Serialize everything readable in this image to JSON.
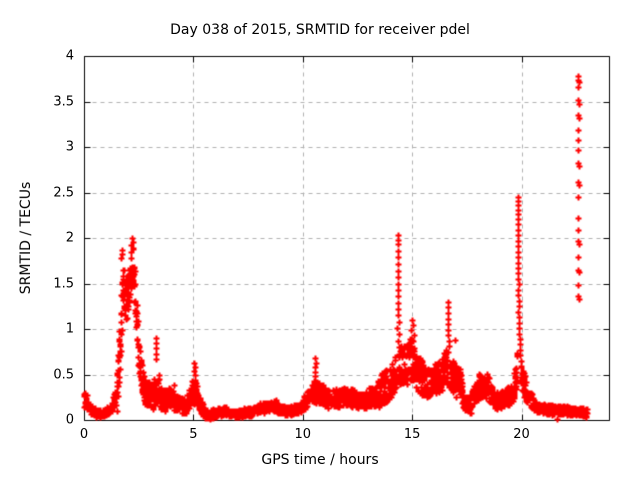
{
  "chart_data": {
    "type": "scatter",
    "title": "Day 038 of 2015, SRMTID for receiver pdel",
    "xlabel": "GPS time / hours",
    "ylabel": "SRMTID / TECUs",
    "xlim": [
      0,
      24
    ],
    "ylim": [
      0,
      4
    ],
    "xticks": [
      0,
      5,
      10,
      15,
      20
    ],
    "yticks": [
      0,
      0.5,
      1,
      1.5,
      2,
      2.5,
      3,
      3.5,
      4
    ],
    "grid": true,
    "grid_style": "dashed",
    "grid_color": "#b0b0b0",
    "axis_color": "#000000",
    "legend": "none",
    "marker": {
      "shape": "plus",
      "color": "#ff0000",
      "size": 7
    },
    "seed": 38,
    "series_name": "SRMTID",
    "series_segments": [
      [
        0.0,
        0.12,
        0.008,
        0.22,
        0.2,
        0.09
      ],
      [
        0.12,
        0.5,
        0.01,
        0.16,
        0.08,
        0.05
      ],
      [
        0.5,
        1.0,
        0.01,
        0.07,
        0.08,
        0.04
      ],
      [
        1.0,
        1.3,
        0.01,
        0.09,
        0.13,
        0.05
      ],
      [
        1.3,
        1.5,
        0.01,
        0.15,
        0.3,
        0.1
      ],
      [
        1.5,
        1.68,
        0.008,
        0.3,
        0.95,
        0.25
      ],
      [
        1.68,
        1.8,
        0.008,
        1.1,
        1.55,
        0.28
      ],
      [
        1.8,
        2.0,
        0.008,
        1.45,
        1.3,
        0.25
      ],
      [
        2.0,
        2.15,
        0.008,
        1.35,
        1.7,
        0.25
      ],
      [
        2.15,
        2.3,
        0.008,
        1.75,
        1.65,
        0.22
      ],
      [
        2.3,
        2.5,
        0.008,
        1.5,
        0.75,
        0.25
      ],
      [
        2.5,
        2.75,
        0.008,
        0.65,
        0.38,
        0.18
      ],
      [
        2.75,
        3.15,
        0.01,
        0.32,
        0.26,
        0.14
      ],
      [
        3.15,
        3.45,
        0.008,
        0.3,
        0.35,
        0.15
      ],
      [
        3.45,
        3.75,
        0.01,
        0.25,
        0.2,
        0.12
      ],
      [
        3.75,
        4.1,
        0.01,
        0.22,
        0.28,
        0.12
      ],
      [
        4.1,
        4.6,
        0.01,
        0.2,
        0.15,
        0.09
      ],
      [
        4.6,
        4.95,
        0.01,
        0.16,
        0.28,
        0.11
      ],
      [
        4.95,
        5.15,
        0.008,
        0.3,
        0.32,
        0.14
      ],
      [
        5.15,
        5.45,
        0.01,
        0.24,
        0.1,
        0.07
      ],
      [
        5.45,
        6.1,
        0.012,
        0.06,
        0.07,
        0.05
      ],
      [
        6.1,
        6.5,
        0.012,
        0.09,
        0.1,
        0.05
      ],
      [
        6.5,
        7.3,
        0.012,
        0.07,
        0.07,
        0.04
      ],
      [
        7.3,
        7.95,
        0.012,
        0.08,
        0.11,
        0.05
      ],
      [
        7.95,
        8.8,
        0.012,
        0.13,
        0.16,
        0.06
      ],
      [
        8.8,
        9.4,
        0.012,
        0.13,
        0.09,
        0.05
      ],
      [
        9.4,
        9.95,
        0.012,
        0.1,
        0.14,
        0.05
      ],
      [
        9.95,
        10.4,
        0.01,
        0.16,
        0.28,
        0.09
      ],
      [
        10.4,
        10.7,
        0.008,
        0.3,
        0.32,
        0.13
      ],
      [
        10.7,
        11.15,
        0.01,
        0.3,
        0.25,
        0.12
      ],
      [
        11.15,
        11.8,
        0.01,
        0.23,
        0.25,
        0.1
      ],
      [
        11.8,
        12.4,
        0.01,
        0.26,
        0.24,
        0.1
      ],
      [
        12.4,
        12.9,
        0.01,
        0.22,
        0.2,
        0.09
      ],
      [
        12.9,
        13.45,
        0.01,
        0.24,
        0.26,
        0.11
      ],
      [
        13.45,
        14.0,
        0.008,
        0.3,
        0.42,
        0.18
      ],
      [
        14.0,
        14.28,
        0.008,
        0.4,
        0.55,
        0.18
      ],
      [
        14.38,
        14.75,
        0.008,
        0.6,
        0.6,
        0.22
      ],
      [
        14.75,
        15.15,
        0.008,
        0.62,
        0.68,
        0.25
      ],
      [
        15.15,
        15.55,
        0.008,
        0.55,
        0.42,
        0.2
      ],
      [
        15.55,
        16.0,
        0.01,
        0.4,
        0.42,
        0.16
      ],
      [
        16.0,
        16.45,
        0.01,
        0.45,
        0.5,
        0.18
      ],
      [
        16.45,
        16.6,
        0.008,
        0.55,
        0.65,
        0.2
      ],
      [
        16.7,
        17.3,
        0.008,
        0.52,
        0.35,
        0.18
      ],
      [
        17.3,
        17.7,
        0.01,
        0.2,
        0.15,
        0.08
      ],
      [
        17.7,
        18.05,
        0.01,
        0.18,
        0.35,
        0.12
      ],
      [
        18.05,
        18.5,
        0.01,
        0.38,
        0.38,
        0.14
      ],
      [
        18.5,
        18.9,
        0.01,
        0.3,
        0.2,
        0.1
      ],
      [
        18.9,
        19.3,
        0.01,
        0.2,
        0.25,
        0.09
      ],
      [
        19.3,
        19.65,
        0.01,
        0.25,
        0.3,
        0.11
      ],
      [
        19.65,
        19.8,
        0.008,
        0.35,
        0.6,
        0.18
      ],
      [
        19.95,
        20.25,
        0.008,
        0.5,
        0.3,
        0.13
      ],
      [
        20.25,
        20.7,
        0.01,
        0.26,
        0.16,
        0.08
      ],
      [
        20.7,
        21.4,
        0.01,
        0.13,
        0.11,
        0.055
      ],
      [
        21.4,
        22.2,
        0.01,
        0.11,
        0.1,
        0.05
      ],
      [
        22.2,
        23.0,
        0.01,
        0.1,
        0.08,
        0.045
      ]
    ],
    "extra_points": [
      [
        1.73,
        1.87
      ],
      [
        1.75,
        1.82
      ],
      [
        1.71,
        1.78
      ],
      [
        2.19,
        2.0
      ],
      [
        2.22,
        1.96
      ],
      [
        2.17,
        1.92
      ],
      [
        3.28,
        0.9
      ],
      [
        3.3,
        0.85
      ],
      [
        3.29,
        0.79
      ],
      [
        3.31,
        0.73
      ],
      [
        3.27,
        0.67
      ],
      [
        5.05,
        0.63
      ],
      [
        5.07,
        0.58
      ],
      [
        5.03,
        0.54
      ],
      [
        5.06,
        0.49
      ],
      [
        10.57,
        0.68
      ],
      [
        10.59,
        0.63
      ],
      [
        10.55,
        0.58
      ],
      [
        10.58,
        0.53
      ],
      [
        10.56,
        0.48
      ],
      [
        14.35,
        2.03
      ],
      [
        14.36,
        1.98
      ],
      [
        14.34,
        1.93
      ],
      [
        14.37,
        1.86
      ],
      [
        14.35,
        1.79
      ],
      [
        14.36,
        1.71
      ],
      [
        14.34,
        1.64
      ],
      [
        14.37,
        1.57
      ],
      [
        14.35,
        1.5
      ],
      [
        14.36,
        1.43
      ],
      [
        14.34,
        1.36
      ],
      [
        14.37,
        1.29
      ],
      [
        14.35,
        1.22
      ],
      [
        14.36,
        1.15
      ],
      [
        14.38,
        1.08
      ],
      [
        14.33,
        1.01
      ],
      [
        14.39,
        0.94
      ],
      [
        14.37,
        0.87
      ],
      [
        14.4,
        0.8
      ],
      [
        14.41,
        0.73
      ],
      [
        15.0,
        1.1
      ],
      [
        15.05,
        1.04
      ],
      [
        14.95,
        0.99
      ],
      [
        15.1,
        0.93
      ],
      [
        16.64,
        1.3
      ],
      [
        16.65,
        1.24
      ],
      [
        16.63,
        1.18
      ],
      [
        16.66,
        1.11
      ],
      [
        16.64,
        1.05
      ],
      [
        16.65,
        0.99
      ],
      [
        16.63,
        0.93
      ],
      [
        16.67,
        0.87
      ],
      [
        16.69,
        0.81
      ],
      [
        16.62,
        0.75
      ],
      [
        16.95,
        0.88
      ],
      [
        19.83,
        2.45
      ],
      [
        19.84,
        2.41
      ],
      [
        19.82,
        2.36
      ],
      [
        19.85,
        2.31
      ],
      [
        19.83,
        2.26
      ],
      [
        19.84,
        2.21
      ],
      [
        19.82,
        2.15
      ],
      [
        19.85,
        2.09
      ],
      [
        19.83,
        2.03
      ],
      [
        19.84,
        1.97
      ],
      [
        19.85,
        1.91
      ],
      [
        19.83,
        1.85
      ],
      [
        19.86,
        1.79
      ],
      [
        19.84,
        1.73
      ],
      [
        19.85,
        1.67
      ],
      [
        19.86,
        1.61
      ],
      [
        19.84,
        1.55
      ],
      [
        19.87,
        1.49
      ],
      [
        19.85,
        1.43
      ],
      [
        19.86,
        1.37
      ],
      [
        19.87,
        1.31
      ],
      [
        19.88,
        1.25
      ],
      [
        19.86,
        1.19
      ],
      [
        19.88,
        1.13
      ],
      [
        19.89,
        1.07
      ],
      [
        19.87,
        1.01
      ],
      [
        19.9,
        0.95
      ],
      [
        19.91,
        0.89
      ],
      [
        19.92,
        0.83
      ],
      [
        19.93,
        0.77
      ],
      [
        19.95,
        0.71
      ],
      [
        19.97,
        0.65
      ],
      [
        21.6,
        0.01
      ],
      [
        22.6,
        3.78
      ],
      [
        22.59,
        3.74
      ],
      [
        22.61,
        3.71
      ],
      [
        22.6,
        3.66
      ],
      [
        22.6,
        3.52
      ],
      [
        22.61,
        3.47
      ],
      [
        22.59,
        3.35
      ],
      [
        22.61,
        3.32
      ],
      [
        22.6,
        3.19
      ],
      [
        22.6,
        3.08
      ],
      [
        22.6,
        2.97
      ],
      [
        22.59,
        2.82
      ],
      [
        22.61,
        2.79
      ],
      [
        22.6,
        2.62
      ],
      [
        22.61,
        2.58
      ],
      [
        22.6,
        2.45
      ],
      [
        22.6,
        2.22
      ],
      [
        22.6,
        2.09
      ],
      [
        22.59,
        1.97
      ],
      [
        22.61,
        1.93
      ],
      [
        22.6,
        1.79
      ],
      [
        22.58,
        1.65
      ],
      [
        22.62,
        1.63
      ],
      [
        22.6,
        1.48
      ],
      [
        22.59,
        1.36
      ],
      [
        22.61,
        1.33
      ]
    ]
  }
}
